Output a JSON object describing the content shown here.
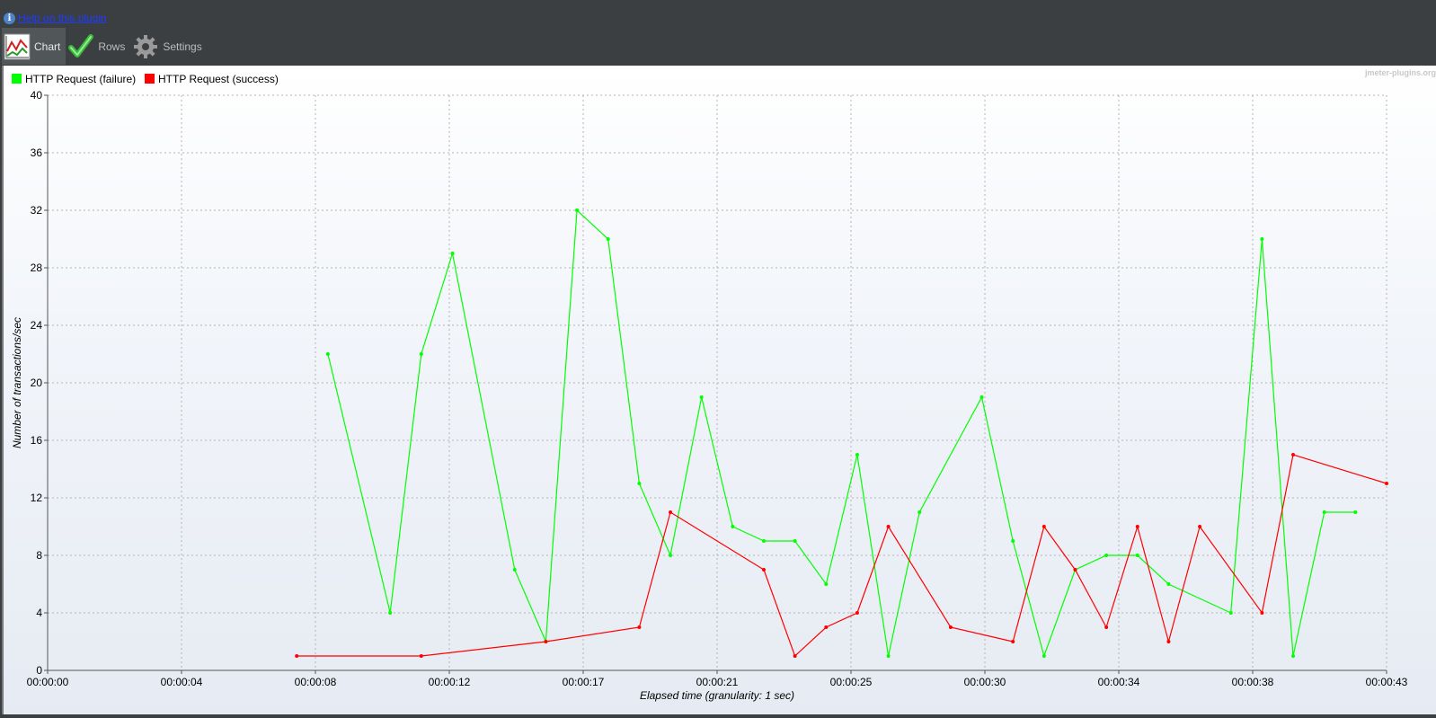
{
  "help": {
    "link_text": "Help on this plugin"
  },
  "tabs": [
    {
      "label": "Chart",
      "icon": "chart-icon",
      "active": true
    },
    {
      "label": "Rows",
      "icon": "checkmark-icon",
      "active": false
    },
    {
      "label": "Settings",
      "icon": "gear-icon",
      "active": false
    }
  ],
  "watermark": "jmeter-plugins.org",
  "colors": {
    "failure": "#00ff00",
    "success": "#ff0000",
    "grid": "#b4b4b4"
  },
  "chart_data": {
    "type": "line",
    "title": "",
    "xlabel": "Elapsed time (granularity: 1 sec)",
    "ylabel": "Number of transactions/sec",
    "ylim": [
      0,
      40
    ],
    "xlim": [
      0,
      43
    ],
    "grid": true,
    "legend_position": "top-left",
    "yticks": [
      0,
      4,
      8,
      12,
      16,
      20,
      24,
      28,
      32,
      36,
      40
    ],
    "xticks": [
      {
        "t": 0,
        "label": "00:00:00"
      },
      {
        "t": 4.3,
        "label": "00:00:04"
      },
      {
        "t": 8.6,
        "label": "00:00:08"
      },
      {
        "t": 12.9,
        "label": "00:00:12"
      },
      {
        "t": 17.2,
        "label": "00:00:17"
      },
      {
        "t": 21.5,
        "label": "00:00:21"
      },
      {
        "t": 25.8,
        "label": "00:00:25"
      },
      {
        "t": 30.1,
        "label": "00:00:30"
      },
      {
        "t": 34.4,
        "label": "00:00:34"
      },
      {
        "t": 38.7,
        "label": "00:00:38"
      },
      {
        "t": 43,
        "label": "00:00:43"
      }
    ],
    "series": [
      {
        "name": "HTTP Request (failure)",
        "color": "#00ff00",
        "points": [
          [
            9,
            22
          ],
          [
            11,
            4
          ],
          [
            12,
            22
          ],
          [
            13,
            29
          ],
          [
            15,
            7
          ],
          [
            16,
            2
          ],
          [
            17,
            32
          ],
          [
            18,
            30
          ],
          [
            19,
            13
          ],
          [
            20,
            8
          ],
          [
            21,
            19
          ],
          [
            22,
            10
          ],
          [
            23,
            9
          ],
          [
            24,
            9
          ],
          [
            25,
            6
          ],
          [
            26,
            15
          ],
          [
            27,
            1
          ],
          [
            28,
            11
          ],
          [
            30,
            19
          ],
          [
            31,
            9
          ],
          [
            32,
            1
          ],
          [
            33,
            7
          ],
          [
            34,
            8
          ],
          [
            35,
            8
          ],
          [
            36,
            6
          ],
          [
            38,
            4
          ],
          [
            39,
            30
          ],
          [
            40,
            1
          ],
          [
            41,
            11
          ],
          [
            42,
            11
          ]
        ]
      },
      {
        "name": "HTTP Request (success)",
        "color": "#ff0000",
        "points": [
          [
            8,
            1
          ],
          [
            12,
            1
          ],
          [
            16,
            2
          ],
          [
            19,
            3
          ],
          [
            20,
            11
          ],
          [
            23,
            7
          ],
          [
            24,
            1
          ],
          [
            25,
            3
          ],
          [
            26,
            4
          ],
          [
            27,
            10
          ],
          [
            29,
            3
          ],
          [
            31,
            2
          ],
          [
            32,
            10
          ],
          [
            33,
            7
          ],
          [
            34,
            3
          ],
          [
            35,
            10
          ],
          [
            36,
            2
          ],
          [
            37,
            10
          ],
          [
            39,
            4
          ],
          [
            40,
            15
          ],
          [
            43,
            13
          ]
        ]
      }
    ]
  }
}
